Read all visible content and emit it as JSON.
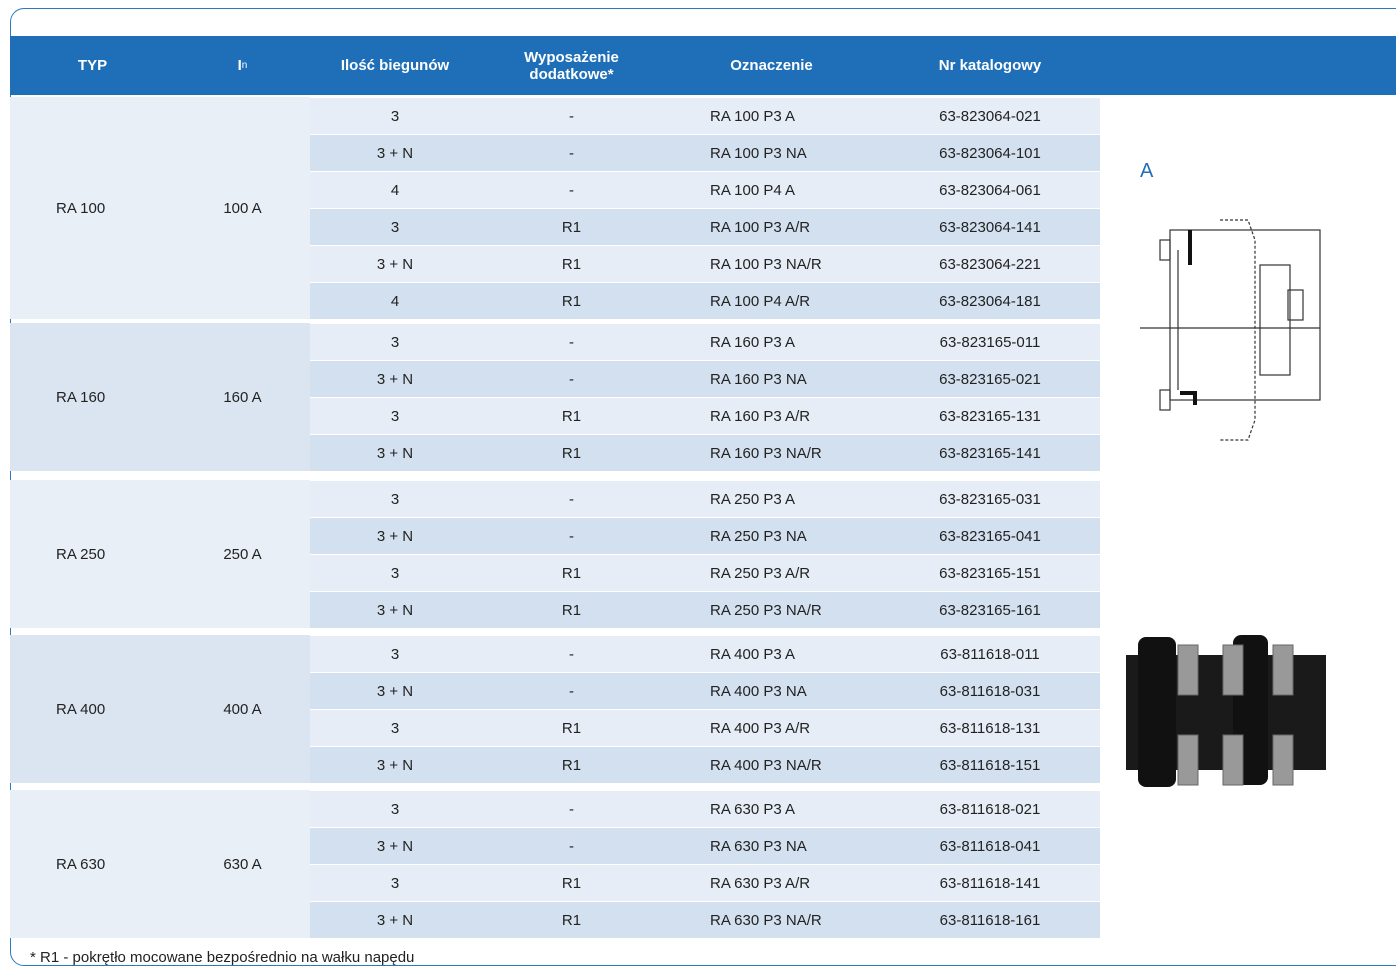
{
  "header": {
    "columns": [
      "TYP",
      {
        "text": "I",
        "sub": "n"
      },
      "Ilość biegunów",
      "Wyposażenie dodatkowe*",
      "Oznaczenie",
      "Nr katalogowy"
    ]
  },
  "table": {
    "groups": [
      {
        "typ": "RA 100",
        "in": "100 A",
        "rows": [
          [
            "3",
            "-",
            "RA 100 P3 A",
            "63-823064-021"
          ],
          [
            "3 + N",
            "-",
            "RA 100 P3 NA",
            "63-823064-101"
          ],
          [
            "4",
            "-",
            "RA 100 P4 A",
            "63-823064-061"
          ],
          [
            "3",
            "R1",
            "RA 100 P3 A/R",
            "63-823064-141"
          ],
          [
            "3 + N",
            "R1",
            "RA 100 P3 NA/R",
            "63-823064-221"
          ],
          [
            "4",
            "R1",
            "RA 100 P4 A/R",
            "63-823064-181"
          ]
        ]
      },
      {
        "typ": "RA 160",
        "in": "160 A",
        "rows": [
          [
            "3",
            "-",
            "RA 160 P3 A",
            "63-823165-011"
          ],
          [
            "3 + N",
            "-",
            "RA 160 P3 NA",
            "63-823165-021"
          ],
          [
            "3",
            "R1",
            "RA 160 P3 A/R",
            "63-823165-131"
          ],
          [
            "3 + N",
            "R1",
            "RA 160 P3 NA/R",
            "63-823165-141"
          ]
        ]
      },
      {
        "typ": "RA 250",
        "in": "250 A",
        "rows": [
          [
            "3",
            "-",
            "RA 250 P3 A",
            "63-823165-031"
          ],
          [
            "3 + N",
            "-",
            "RA 250 P3 NA",
            "63-823165-041"
          ],
          [
            "3",
            "R1",
            "RA 250 P3 A/R",
            "63-823165-151"
          ],
          [
            "3 + N",
            "R1",
            "RA 250 P3 NA/R",
            "63-823165-161"
          ]
        ]
      },
      {
        "typ": "RA 400",
        "in": "400 A",
        "rows": [
          [
            "3",
            "-",
            "RA 400 P3 A",
            "63-811618-011"
          ],
          [
            "3 + N",
            "-",
            "RA 400 P3 NA",
            "63-811618-031"
          ],
          [
            "3",
            "R1",
            "RA 400 P3 A/R",
            "63-811618-131"
          ],
          [
            "3 + N",
            "R1",
            "RA 400 P3 NA/R",
            "63-811618-151"
          ]
        ]
      },
      {
        "typ": "RA 630",
        "in": "630 A",
        "rows": [
          [
            "3",
            "-",
            "RA 630 P3 A",
            "63-811618-021"
          ],
          [
            "3 + N",
            "-",
            "RA 630 P3 NA",
            "63-811618-041"
          ],
          [
            "3",
            "R1",
            "RA 630 P3 A/R",
            "63-811618-141"
          ],
          [
            "3 + N",
            "R1",
            "RA 630 P3 NA/R",
            "63-811618-161"
          ]
        ]
      }
    ]
  },
  "figure": {
    "label": "A"
  },
  "footnote": "* R1 - pokrętło mocowane bezpośrednio na wałku napędu"
}
